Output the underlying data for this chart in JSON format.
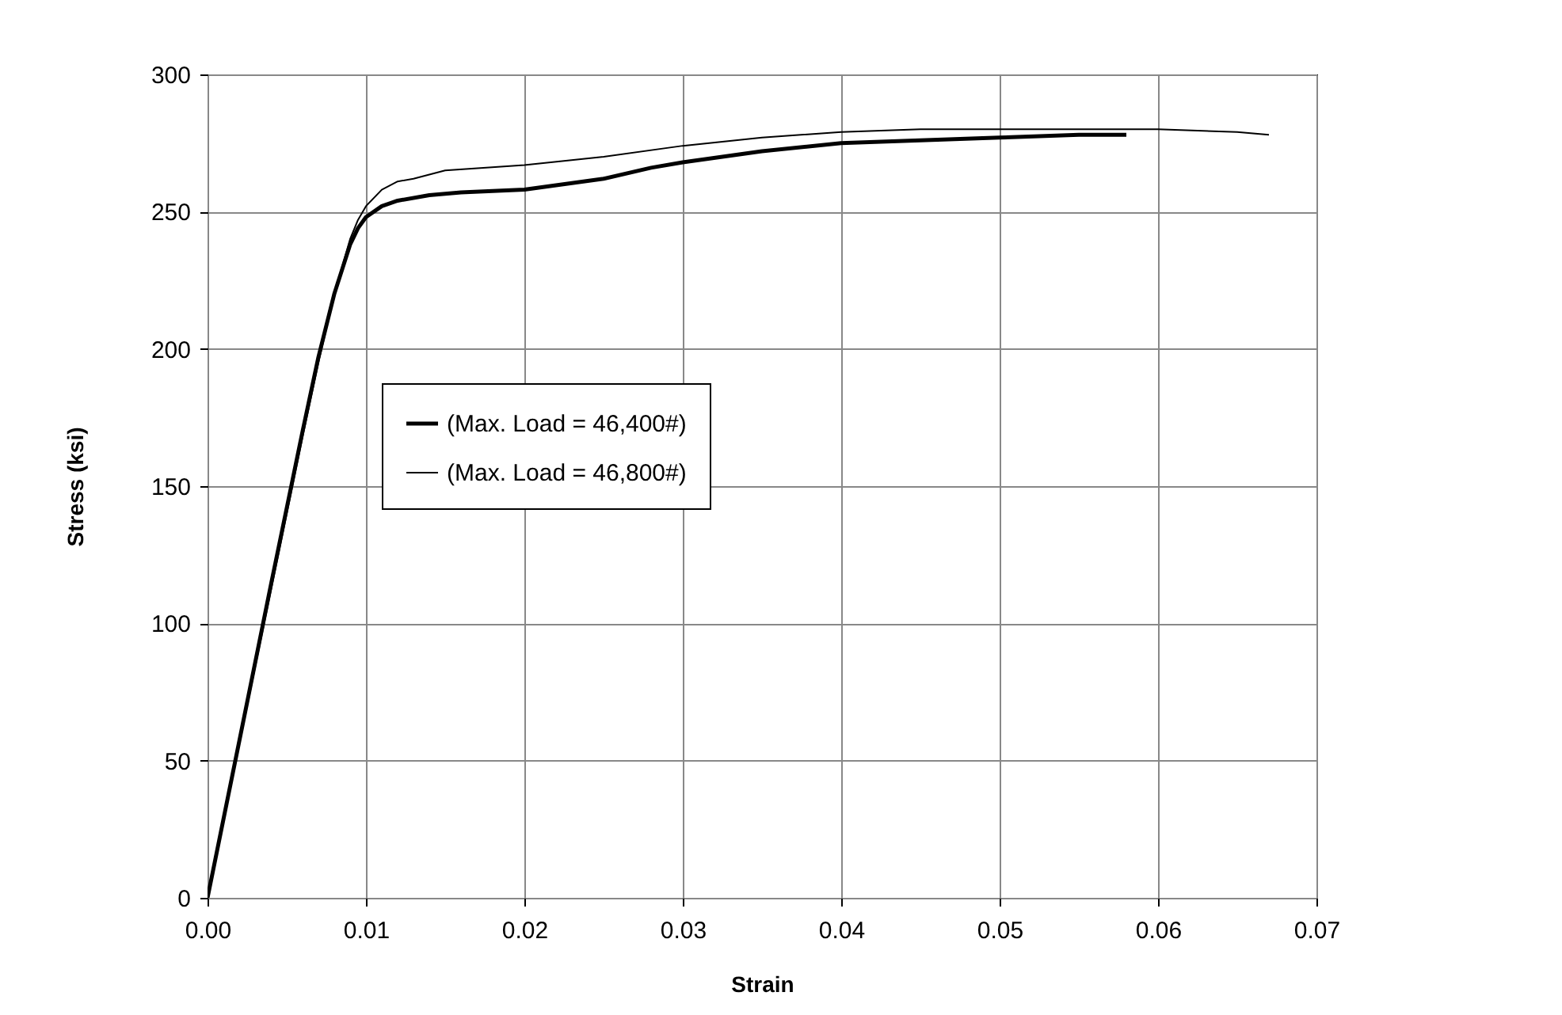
{
  "chart_data": {
    "type": "line",
    "xlabel": "Strain",
    "ylabel": "Stress (ksi)",
    "xlim": [
      0,
      0.07
    ],
    "xticks": [
      {
        "value": 0,
        "label": "0.00"
      },
      {
        "value": 0.01,
        "label": "0.01"
      },
      {
        "value": 0.02,
        "label": "0.02"
      },
      {
        "value": 0.03,
        "label": "0.03"
      },
      {
        "value": 0.04,
        "label": "0.04"
      },
      {
        "value": 0.05,
        "label": "0.05"
      },
      {
        "value": 0.06,
        "label": "0.06"
      },
      {
        "value": 0.07,
        "label": "0.07"
      }
    ],
    "ylim": [
      0,
      300
    ],
    "yticks": [
      0,
      50,
      100,
      150,
      200,
      250,
      300
    ],
    "grid": true,
    "legend": "center",
    "marker": "none",
    "line_style": "solid",
    "series": [
      {
        "name": "(Max. Load = 46,400#)",
        "color": "#000000",
        "x": [
          0,
          0.002,
          0.004,
          0.006,
          0.007,
          0.008,
          0.009,
          0.0095,
          0.01,
          0.011,
          0.012,
          0.014,
          0.016,
          0.02,
          0.025,
          0.028,
          0.03,
          0.035,
          0.04,
          0.045,
          0.05,
          0.055,
          0.058
        ],
        "values": [
          0,
          57,
          114,
          170,
          197,
          220,
          238,
          244,
          248,
          252,
          254,
          256,
          257,
          258,
          262,
          266,
          268,
          272,
          275,
          276,
          277,
          278,
          278
        ]
      },
      {
        "name": "(Max. Load = 46,800#)",
        "color": "#000000",
        "x": [
          0,
          0.002,
          0.004,
          0.006,
          0.007,
          0.008,
          0.009,
          0.0095,
          0.01,
          0.011,
          0.012,
          0.013,
          0.015,
          0.02,
          0.025,
          0.03,
          0.035,
          0.04,
          0.045,
          0.05,
          0.055,
          0.06,
          0.065,
          0.067
        ],
        "values": [
          0,
          56,
          112,
          168,
          195,
          220,
          240,
          247,
          252,
          258,
          261,
          262,
          265,
          267,
          270,
          274,
          277,
          279,
          280,
          280,
          280,
          280,
          279,
          278
        ]
      }
    ]
  }
}
